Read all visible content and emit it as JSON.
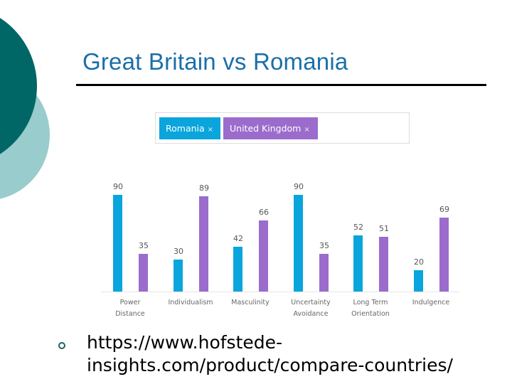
{
  "slide": {
    "title": "Great Britain vs Romania",
    "bullet_link_line1": "https://www.hofstede-",
    "bullet_link_line2": "insights.com/product/compare-countries/"
  },
  "filter": {
    "chips": [
      {
        "label": "Romania",
        "remove": "×",
        "color": "#0aa5dc"
      },
      {
        "label": "United Kingdom",
        "remove": "×",
        "color": "#9b6ccc"
      }
    ]
  },
  "colors": {
    "accent_dark": "#006666",
    "accent_light": "#99cccc",
    "title": "#1a6fa8",
    "romania": "#0aa5dc",
    "uk": "#9b6ccc"
  },
  "chart_data": {
    "type": "bar",
    "title": "",
    "xlabel": "",
    "ylabel": "",
    "ylim": [
      0,
      100
    ],
    "grid": false,
    "legend_position": "top (filter chips)",
    "categories": [
      "Power Distance",
      "Individualism",
      "Masculinity",
      "Uncertainty Avoidance",
      "Long Term Orientation",
      "Indulgence"
    ],
    "category_lines": [
      [
        "Power",
        "Distance"
      ],
      [
        "Individualism"
      ],
      [
        "Masculinity"
      ],
      [
        "Uncertainty",
        "Avoidance"
      ],
      [
        "Long Term",
        "Orientation"
      ],
      [
        "Indulgence"
      ]
    ],
    "series": [
      {
        "name": "Romania",
        "color": "#0aa5dc",
        "values": [
          90,
          30,
          42,
          90,
          52,
          20
        ]
      },
      {
        "name": "United Kingdom",
        "color": "#9b6ccc",
        "values": [
          35,
          89,
          66,
          35,
          51,
          69
        ]
      }
    ]
  }
}
